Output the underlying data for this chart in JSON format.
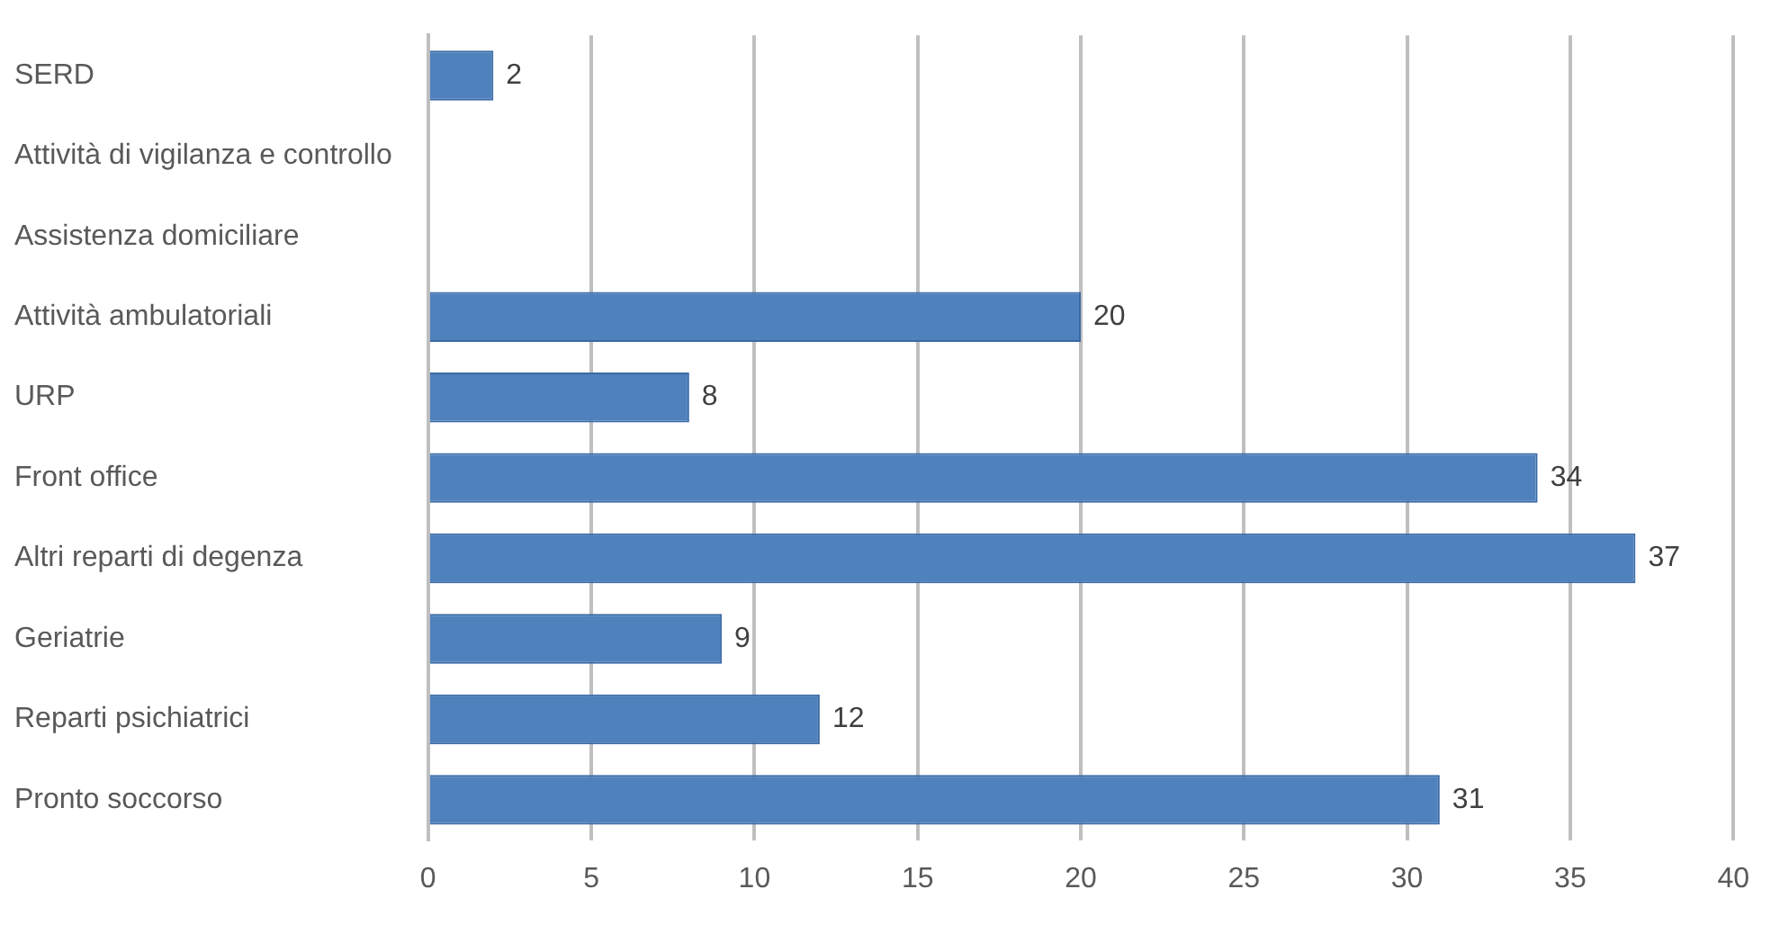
{
  "chart_data": {
    "type": "bar",
    "orientation": "horizontal",
    "categories": [
      "SERD",
      "Attività di vigilanza e controllo",
      "Assistenza domiciliare",
      "Attività ambulatoriali",
      "URP",
      "Front office",
      "Altri reparti di degenza",
      "Geriatrie",
      "Reparti psichiatrici",
      "Pronto soccorso"
    ],
    "values": [
      2,
      null,
      null,
      20,
      8,
      34,
      37,
      9,
      12,
      31
    ],
    "color": "#4f81bd",
    "xlim": [
      0,
      40
    ],
    "xticks": [
      0,
      5,
      10,
      15,
      20,
      25,
      30,
      35,
      40
    ],
    "grid": "x",
    "data_labels": true,
    "legend": false
  }
}
